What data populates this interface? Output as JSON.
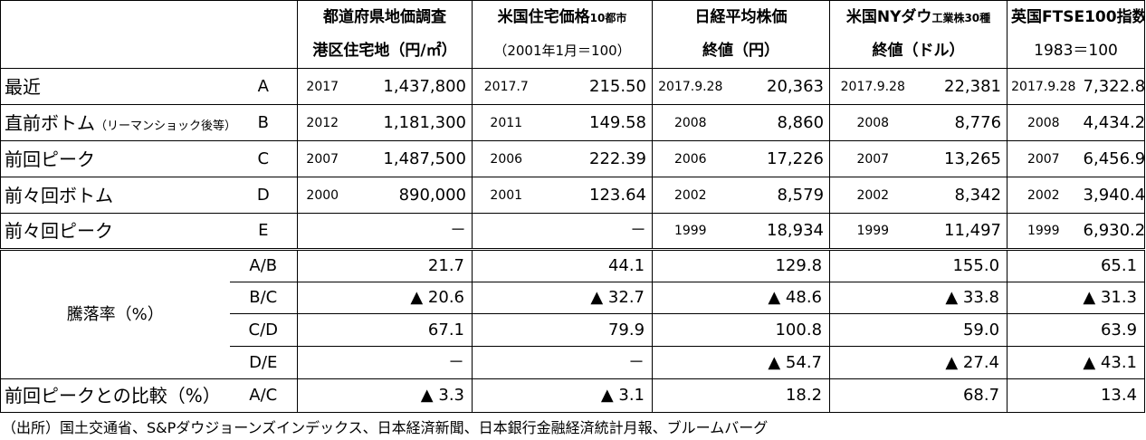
{
  "headers": [
    {
      "line1": "都道府県地価調査",
      "line1_small": "",
      "line2": "港区住宅地（円/㎡）"
    },
    {
      "line1": "米国住宅価格",
      "line1_small": "10都市",
      "line2": "（2001年1月＝100）"
    },
    {
      "line1": "日経平均株価",
      "line1_small": "",
      "line2": "終値（円）"
    },
    {
      "line1": "米国NYダウ",
      "line1_small": "工業株30種",
      "line2": "終値（ドル）"
    },
    {
      "line1": "英国FTSE100指数",
      "line1_small": "",
      "line2": "1983＝100"
    }
  ],
  "rows": [
    {
      "label": "最近",
      "label_small": "",
      "code": "A",
      "cells": [
        {
          "year": "2017",
          "value": "1,437,800"
        },
        {
          "year": "2017.7",
          "value": "215.50"
        },
        {
          "year": "2017.9.28",
          "value": "20,363"
        },
        {
          "year": "2017.9.28",
          "value": "22,381"
        },
        {
          "year": "2017.9.28",
          "value": "7,322.8"
        }
      ]
    },
    {
      "label": "直前ボトム",
      "label_small": "（リーマンショック後等）",
      "code": "B",
      "cells": [
        {
          "year": "2012",
          "value": "1,181,300"
        },
        {
          "year": "2011",
          "value": "149.58"
        },
        {
          "year": "2008",
          "value": "8,860"
        },
        {
          "year": "2008",
          "value": "8,776"
        },
        {
          "year": "2008",
          "value": "4,434.2"
        }
      ]
    },
    {
      "label": "前回ピーク",
      "label_small": "",
      "code": "C",
      "cells": [
        {
          "year": "2007",
          "value": "1,487,500"
        },
        {
          "year": "2006",
          "value": "222.39"
        },
        {
          "year": "2006",
          "value": "17,226"
        },
        {
          "year": "2007",
          "value": "13,265"
        },
        {
          "year": "2007",
          "value": "6,456.9"
        }
      ]
    },
    {
      "label": "前々回ボトム",
      "label_small": "",
      "code": "D",
      "cells": [
        {
          "year": "2000",
          "value": "890,000"
        },
        {
          "year": "2001",
          "value": "123.64"
        },
        {
          "year": "2002",
          "value": "8,579"
        },
        {
          "year": "2002",
          "value": "8,342"
        },
        {
          "year": "2002",
          "value": "3,940.4"
        }
      ]
    },
    {
      "label": "前々回ピーク",
      "label_small": "",
      "code": "E",
      "cells": [
        {
          "year": "",
          "value": "－"
        },
        {
          "year": "",
          "value": "－"
        },
        {
          "year": "1999",
          "value": "18,934"
        },
        {
          "year": "1999",
          "value": "11,497"
        },
        {
          "year": "1999",
          "value": "6,930.2"
        }
      ]
    }
  ],
  "rate_label": "騰落率（%）",
  "rate_rows": [
    {
      "ratio": "A/B",
      "values": [
        "21.7",
        "44.1",
        "129.8",
        "155.0",
        "65.1"
      ]
    },
    {
      "ratio": "B/C",
      "values": [
        "▲ 20.6",
        "▲ 32.7",
        "▲ 48.6",
        "▲ 33.8",
        "▲ 31.3"
      ]
    },
    {
      "ratio": "C/D",
      "values": [
        "67.1",
        "79.9",
        "100.8",
        "59.0",
        "63.9"
      ]
    },
    {
      "ratio": "D/E",
      "values": [
        "－",
        "－",
        "▲ 54.7",
        "▲ 27.4",
        "▲ 43.1"
      ]
    }
  ],
  "compare_row": {
    "label": "前回ピークとの比較（%）",
    "ratio": "A/C",
    "values": [
      "▲ 3.3",
      "▲ 3.1",
      "18.2",
      "68.7",
      "13.4"
    ]
  },
  "source_note": "（出所）国土交通省、S&Pダウジョーンズインデックス、日本経済新聞、日本銀行金融経済統計月報、ブルームバーグ"
}
